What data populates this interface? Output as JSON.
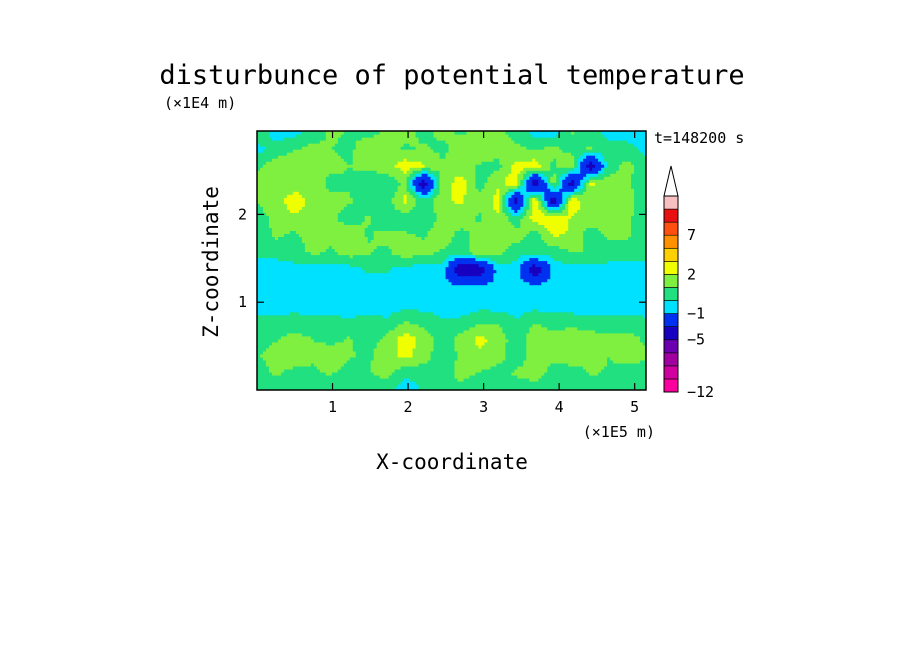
{
  "chart_data": {
    "type": "heatmap",
    "title": "disturbunce of potential temperature",
    "xlabel": "X-coordinate",
    "ylabel": "Z-coordinate",
    "x_unit": "(×1E5 m)",
    "y_unit": "(×1E4 m)",
    "time_label": "t=148200 s",
    "xlim": [
      0,
      5.15
    ],
    "ylim": [
      0,
      2.95
    ],
    "x_ticks": [
      1,
      2,
      3,
      4,
      5
    ],
    "y_ticks": [
      1,
      2
    ],
    "colorbar": {
      "levels": [
        -12,
        -11,
        -9,
        -7,
        -5,
        -3,
        -1,
        0,
        1,
        2,
        3,
        5,
        7,
        9,
        11
      ],
      "labeled": [
        -12,
        -5,
        -1,
        2,
        7
      ],
      "colors": [
        "#ff00a0",
        "#d000a0",
        "#a000a0",
        "#6a00b0",
        "#1800c0",
        "#0030f0",
        "#00e0ff",
        "#20e080",
        "#80f040",
        "#f0ff00",
        "#ffd000",
        "#ff9000",
        "#ff5010",
        "#e81010",
        "#f7c0c0"
      ],
      "top_extension_color": "#ffffff"
    },
    "field": [
      [
        0.3,
        0.2,
        0.4,
        0.2,
        0.3,
        0.1,
        0.4,
        0.2,
        -0.5,
        0.1,
        0.4,
        0.3,
        0.1,
        0.3,
        0.2,
        0.4,
        0.5,
        0.2,
        0.3,
        0.2,
        0.3,
        0.1
      ],
      [
        0.4,
        1.2,
        0.6,
        0.8,
        1.1,
        0.5,
        0.9,
        1.4,
        0.2,
        0.3,
        0.1,
        1.6,
        0.9,
        0.5,
        1.2,
        1.5,
        0.6,
        0.3,
        1.1,
        0.9,
        0.4,
        0.3
      ],
      [
        0.9,
        1.5,
        1.9,
        1.2,
        1.6,
        1.1,
        0.8,
        1.7,
        2.2,
        1.6,
        0.2,
        1.2,
        1.9,
        1.5,
        0.3,
        1.6,
        1.3,
        1.8,
        1.4,
        1.0,
        1.6,
        1.2
      ],
      [
        0.5,
        0.9,
        1.4,
        1.0,
        0.7,
        1.1,
        0.5,
        1.2,
        2.5,
        1.7,
        0.3,
        1.4,
        2.2,
        1.8,
        0.2,
        1.9,
        1.5,
        1.9,
        1.6,
        1.2,
        1.4,
        0.8
      ],
      [
        0.2,
        0.3,
        0.4,
        0.2,
        0.3,
        0.1,
        0.3,
        0.2,
        1.0,
        0.6,
        0.1,
        0.2,
        0.7,
        0.8,
        0.1,
        0.9,
        0.4,
        0.5,
        0.2,
        0.3,
        0.4,
        0.2
      ],
      [
        -0.5,
        -0.6,
        -0.4,
        -0.5,
        -0.6,
        -0.5,
        -0.4,
        -0.6,
        -0.5,
        -0.4,
        -0.5,
        -0.6,
        -0.4,
        -0.5,
        -0.6,
        -0.5,
        -0.4,
        -0.6,
        -0.5,
        -0.4,
        -0.5,
        -0.6
      ],
      [
        -0.5,
        -0.6,
        -0.5,
        -0.5,
        -0.6,
        -0.5,
        -0.5,
        -0.6,
        -0.5,
        -0.5,
        -0.6,
        -0.5,
        -0.5,
        -0.6,
        -0.5,
        -0.5,
        -0.6,
        -0.5,
        -0.5,
        -0.6,
        -0.5,
        -0.5
      ],
      [
        -0.3,
        -0.5,
        -0.4,
        -0.5,
        -0.3,
        -0.5,
        0.2,
        0.1,
        -0.4,
        -0.6,
        -0.4,
        -4.8,
        -4.6,
        -0.5,
        -0.4,
        -4.5,
        -0.5,
        -0.4,
        -0.5,
        -0.3,
        -0.5,
        -0.4
      ],
      [
        0.2,
        0.3,
        0.6,
        1.2,
        0.9,
        1.5,
        1.1,
        0.8,
        1.6,
        1.3,
        0.9,
        0.4,
        1.8,
        1.4,
        0.3,
        0.9,
        0.3,
        1.1,
        0.9,
        0.4,
        0.6,
        0.3
      ],
      [
        0.3,
        1.2,
        0.8,
        1.4,
        1.1,
        1.6,
        0.9,
        1.3,
        1.1,
        0.9,
        1.6,
        0.6,
        1.4,
        1.8,
        1.5,
        0.5,
        2.1,
        1.9,
        0.4,
        1.2,
        1.1,
        0.5
      ],
      [
        0.5,
        1.3,
        1.8,
        1.5,
        1.2,
        0.6,
        1.1,
        0.4,
        0.6,
        0.3,
        1.2,
        1.7,
        0.8,
        1.9,
        0.3,
        2.6,
        2.8,
        1.9,
        1.6,
        1.4,
        1.2,
        0.4
      ],
      [
        1.1,
        1.6,
        2.6,
        1.7,
        1.3,
        1.1,
        0.5,
        0.4,
        2.4,
        0.3,
        1.9,
        2.1,
        1.3,
        2.4,
        -4.2,
        3.1,
        -4.5,
        2.9,
        1.2,
        1.5,
        1.3,
        0.6
      ],
      [
        1.3,
        1.2,
        1.4,
        1.5,
        0.7,
        0.9,
        0.4,
        0.3,
        1.1,
        -4.4,
        1.4,
        2.6,
        0.5,
        1.8,
        2.7,
        -4.8,
        1.6,
        -4.2,
        2.2,
        1.4,
        1.1,
        0.5
      ],
      [
        0.8,
        1.5,
        1.7,
        1.1,
        1.3,
        1.0,
        1.2,
        1.5,
        2.6,
        2.1,
        1.1,
        1.4,
        0.9,
        0.7,
        2.3,
        2.6,
        0.8,
        1.7,
        -4.3,
        0.6,
        1.3,
        0.4
      ],
      [
        -0.4,
        0.5,
        0.9,
        1.3,
        1.0,
        0.8,
        1.6,
        1.3,
        0.9,
        1.1,
        0.8,
        1.3,
        1.6,
        1.4,
        1.2,
        0.9,
        1.2,
        0.7,
        1.1,
        0.5,
        0.4,
        -0.3
      ],
      [
        1.1,
        -0.6,
        -0.5,
        0.4,
        1.2,
        0.9,
        0.7,
        1.1,
        1.3,
        0.8,
        1.2,
        0.9,
        1.1,
        1.3,
        0.6,
        -0.5,
        -0.6,
        1.1,
        0.5,
        -0.5,
        -0.6,
        -0.5
      ]
    ],
    "field_x_range": [
      0,
      5.15
    ],
    "field_y_range": [
      0,
      2.95
    ]
  }
}
